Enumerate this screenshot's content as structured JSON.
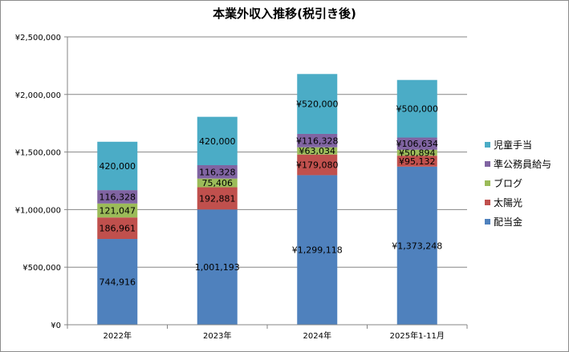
{
  "chart_data": {
    "type": "bar",
    "stacked": true,
    "title": "本業外収入推移(税引き後)",
    "categories": [
      "2022年",
      "2023年",
      "2024年",
      "2025年1-11月"
    ],
    "ylim": [
      0,
      2500000
    ],
    "yticks": [
      "¥0",
      "¥500,000",
      "¥1,000,000",
      "¥1,500,000",
      "¥2,000,000",
      "¥2,500,000"
    ],
    "grid": true,
    "legend_position": "right",
    "series": [
      {
        "name": "配当金",
        "color": "#4F81BD",
        "values": [
          744916,
          1001193,
          1299118,
          1373248
        ],
        "labels": [
          "744,916",
          "1,001,193",
          "¥1,299,118",
          "¥1,373,248"
        ]
      },
      {
        "name": "太陽光",
        "color": "#C0504D",
        "values": [
          186961,
          192881,
          179080,
          95132
        ],
        "labels": [
          "186,961",
          "192,881",
          "¥179,080",
          "¥95,132"
        ]
      },
      {
        "name": "ブログ",
        "color": "#9BBB59",
        "values": [
          121047,
          75406,
          63034,
          50894
        ],
        "labels": [
          "121,047",
          "75,406",
          "¥63,034",
          "¥50,894"
        ]
      },
      {
        "name": "準公務員給与",
        "color": "#8064A2",
        "values": [
          116328,
          116328,
          116328,
          106634
        ],
        "labels": [
          "116,328",
          "116,328",
          "¥116,328",
          "¥106,634"
        ]
      },
      {
        "name": "児童手当",
        "color": "#4BACC6",
        "values": [
          420000,
          420000,
          520000,
          500000
        ],
        "labels": [
          "420,000",
          "420,000",
          "¥520,000",
          "¥500,000"
        ]
      }
    ]
  }
}
